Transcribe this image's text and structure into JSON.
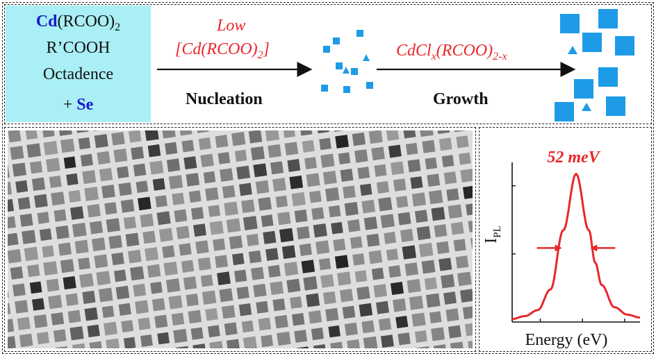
{
  "precursor": {
    "cd_symbol": "Cd",
    "cd_ligand": "(RCOO)",
    "cd_subscript": "2",
    "acid": "R’COOH",
    "solvent": "Octadence",
    "plus": "+ ",
    "se": "Se"
  },
  "nucleation": {
    "condition_line1": "Low",
    "condition_line2_pre": "[Cd(RCOO)",
    "condition_line2_sub": "2",
    "condition_line2_post": "]",
    "label": "Nucleation"
  },
  "growth": {
    "reagent_pre": "CdCl",
    "reagent_sub1": "x",
    "reagent_mid": "(RCOO)",
    "reagent_sub2": "2-x",
    "label": "Growth"
  },
  "colors": {
    "precursor_bg": "#a9eff5",
    "crystal": "#1e9be6",
    "accent_red": "#e8262a",
    "element_blue": "#1a1acc"
  },
  "chart_data": {
    "type": "line",
    "title": "52 meV",
    "xlabel": "Energy (eV)",
    "ylabel": "I",
    "ylabel_sub": "PL",
    "annotation": "52 meV",
    "series": [
      {
        "x": [
          0.0,
          0.1,
          0.2,
          0.3,
          0.4,
          0.5,
          0.6,
          0.65,
          0.7,
          0.8,
          0.9,
          1.0
        ],
        "y": [
          0.02,
          0.04,
          0.08,
          0.22,
          0.62,
          1.0,
          0.62,
          0.4,
          0.25,
          0.1,
          0.05,
          0.03
        ]
      }
    ],
    "xlim": [
      0,
      1
    ],
    "ylim": [
      0,
      1.05
    ],
    "grid": false
  }
}
